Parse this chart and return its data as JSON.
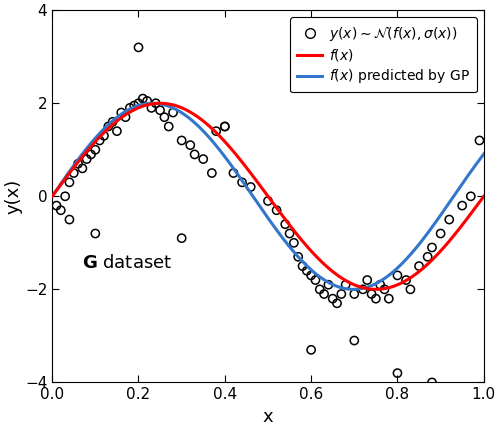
{
  "xlabel": "x",
  "ylabel": "y(x)",
  "xlim": [
    0,
    1
  ],
  "ylim": [
    -4,
    4
  ],
  "xticks": [
    0,
    0.2,
    0.4,
    0.6,
    0.8,
    1.0
  ],
  "yticks": [
    -4,
    -2,
    0,
    2,
    4
  ],
  "dataset_label_bold": "G",
  "dataset_label_rest": " dataset",
  "true_func_color": "#FF0000",
  "gp_func_color": "#3377CC",
  "scatter_color": "#000000",
  "background_color": "#FFFFFF",
  "true_func_linewidth": 2.2,
  "gp_func_linewidth": 2.2,
  "scatter_size": 35,
  "true_func_amplitude": 2.0,
  "true_func_freq": 6.2,
  "true_func_phase": 1.57,
  "gp_func_amplitude": 2.0,
  "gp_func_freq": 6.0,
  "gp_func_phase": 1.75,
  "scatter_points_x": [
    0.01,
    0.02,
    0.03,
    0.04,
    0.05,
    0.06,
    0.07,
    0.08,
    0.09,
    0.1,
    0.11,
    0.12,
    0.13,
    0.14,
    0.15,
    0.16,
    0.17,
    0.18,
    0.19,
    0.2,
    0.21,
    0.22,
    0.23,
    0.24,
    0.25,
    0.26,
    0.27,
    0.28,
    0.3,
    0.32,
    0.33,
    0.35,
    0.37,
    0.38,
    0.4,
    0.42,
    0.44,
    0.46,
    0.5,
    0.52,
    0.54,
    0.55,
    0.56,
    0.57,
    0.58,
    0.59,
    0.6,
    0.61,
    0.62,
    0.63,
    0.64,
    0.65,
    0.66,
    0.67,
    0.68,
    0.7,
    0.72,
    0.73,
    0.74,
    0.75,
    0.76,
    0.77,
    0.78,
    0.8,
    0.82,
    0.83,
    0.85,
    0.87,
    0.88,
    0.9,
    0.92,
    0.95,
    0.97,
    0.99,
    0.04,
    0.1,
    0.2,
    0.3,
    0.4,
    0.6,
    0.7,
    0.8,
    0.88
  ],
  "scatter_points_y": [
    -0.2,
    -0.3,
    0.0,
    0.3,
    0.5,
    0.7,
    0.6,
    0.8,
    0.9,
    1.0,
    1.2,
    1.3,
    1.5,
    1.6,
    1.4,
    1.8,
    1.7,
    1.9,
    1.95,
    2.0,
    2.1,
    2.05,
    1.9,
    2.0,
    1.85,
    1.7,
    1.5,
    1.8,
    1.2,
    1.1,
    0.9,
    0.8,
    0.5,
    1.4,
    1.5,
    0.5,
    0.3,
    0.2,
    -0.1,
    -0.3,
    -0.6,
    -0.8,
    -1.0,
    -1.3,
    -1.5,
    -1.6,
    -1.7,
    -1.8,
    -2.0,
    -2.1,
    -1.9,
    -2.2,
    -2.3,
    -2.1,
    -1.9,
    -2.1,
    -2.0,
    -1.8,
    -2.1,
    -2.2,
    -1.9,
    -2.0,
    -2.2,
    -1.7,
    -1.8,
    -2.0,
    -1.5,
    -1.3,
    -1.1,
    -0.8,
    -0.5,
    -0.2,
    0.0,
    1.2,
    -0.5,
    -0.8,
    3.2,
    -0.9,
    1.5,
    -3.3,
    -3.1,
    -3.8,
    -4.0
  ]
}
